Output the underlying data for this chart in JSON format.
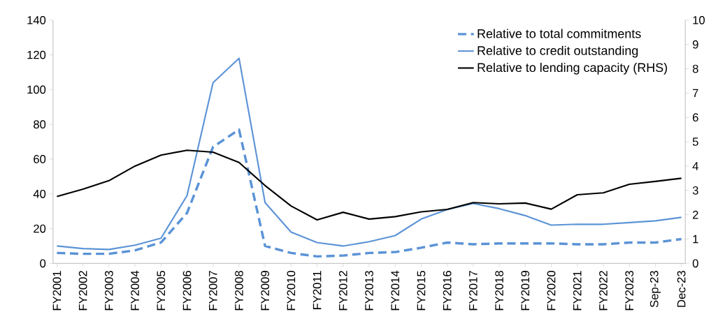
{
  "chart_data": {
    "type": "line",
    "categories": [
      "FY2001",
      "FY2002",
      "FY2003",
      "FY2004",
      "FY2005",
      "FY2006",
      "FY2007",
      "FY2008",
      "FY2009",
      "FY2010",
      "FY2011",
      "FY2012",
      "FY2013",
      "FY2014",
      "FY2015",
      "FY2016",
      "FY2017",
      "FY2018",
      "FY2019",
      "FY2020",
      "FY2021",
      "FY2022",
      "FY2023",
      "Sep-23",
      "Dec-23"
    ],
    "series": [
      {
        "name": "Relative to total commitments",
        "color": "#5b93d6",
        "line_style": "dashed",
        "values": [
          6,
          5.5,
          5.5,
          7.5,
          12,
          29,
          67,
          77,
          10,
          6,
          4,
          4.5,
          6,
          6.5,
          9,
          12,
          11,
          11.5,
          11.5,
          11.5,
          11,
          11,
          12,
          12,
          14
        ]
      },
      {
        "name": "Relative to credit outstanding",
        "color": "#5b93d6",
        "line_style": "solid",
        "values": [
          10,
          8.5,
          8,
          10.5,
          14.5,
          39,
          104,
          118,
          35,
          18,
          12,
          10,
          12.5,
          16,
          25.5,
          31,
          34.5,
          31.5,
          27.5,
          22,
          22.5,
          22.5,
          23.5,
          24.5,
          26.5
        ]
      },
      {
        "name": "Relative to lending capacity (RHS)",
        "color": "#000000",
        "line_style": "solid",
        "axis": "y2",
        "values": [
          2.75,
          3.05,
          3.4,
          4.0,
          4.45,
          4.65,
          4.57,
          4.15,
          3.2,
          2.36,
          1.79,
          2.1,
          1.82,
          1.92,
          2.12,
          2.22,
          2.5,
          2.45,
          2.48,
          2.23,
          2.82,
          2.9,
          3.25,
          3.37,
          3.5
        ]
      }
    ],
    "ylim": [
      0,
      140
    ],
    "yticks": [
      0,
      20,
      40,
      60,
      80,
      100,
      120,
      140
    ],
    "y2lim": [
      0,
      10
    ],
    "y2ticks": [
      0,
      1,
      2,
      3,
      4,
      5,
      6,
      7,
      8,
      9,
      10
    ],
    "legend": "top right",
    "grid": false,
    "marker": "none"
  }
}
